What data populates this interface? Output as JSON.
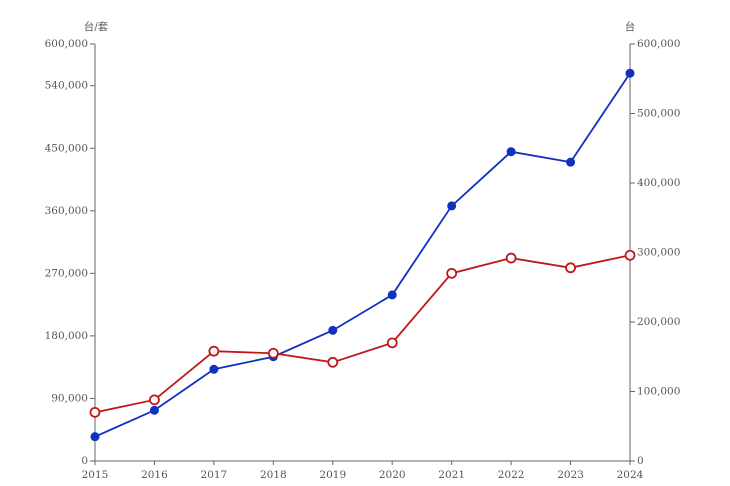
{
  "chart_data": {
    "type": "line",
    "ylabel": "台/套",
    "y2label": "台",
    "categories": [
      "2015",
      "2016",
      "2017",
      "2018",
      "2019",
      "2020",
      "2021",
      "2022",
      "2023",
      "2024"
    ],
    "series": [
      {
        "color": "#1030c0",
        "marker": "filled",
        "values": [
          35000,
          73000,
          132000,
          150000,
          188000,
          239000,
          367000,
          445000,
          430000,
          558000
        ]
      },
      {
        "color": "#c01818",
        "marker": "open",
        "axis": "y2",
        "values": [
          70000,
          88000,
          158000,
          155000,
          142000,
          170000,
          270000,
          292000,
          278000,
          296000
        ]
      }
    ],
    "ylim": [
      0,
      600000
    ],
    "yticks": [
      0,
      {
        "value": 90000,
        "label": "90,000"
      },
      {
        "value": 180000,
        "label": "180,000"
      },
      {
        "value": 270000,
        "label": "270,000"
      },
      {
        "value": 360000,
        "label": "360,000"
      },
      {
        "value": 450000,
        "label": "450,000"
      },
      {
        "value": 540000,
        "label": "540,000"
      },
      {
        "value": 600000,
        "label": "600,000"
      }
    ],
    "y2lim": [
      0,
      600000
    ],
    "y2ticks": [
      0,
      {
        "value": 100000,
        "label": "100,000"
      },
      {
        "value": 200000,
        "label": "200,000"
      },
      {
        "value": 300000,
        "label": "300,000"
      },
      {
        "value": 400000,
        "label": "400,000"
      },
      {
        "value": 500000,
        "label": "500,000"
      },
      {
        "value": 600000,
        "label": "600,000"
      }
    ],
    "grid": false
  }
}
